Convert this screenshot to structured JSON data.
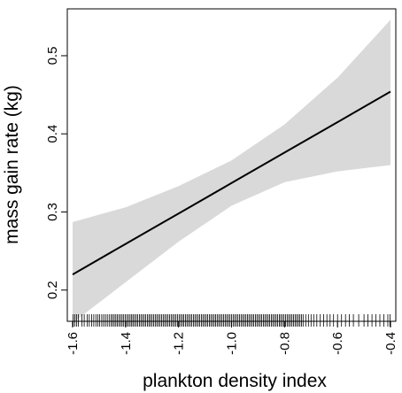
{
  "chart_data": {
    "type": "line",
    "title": "",
    "xlabel": "plankton density index",
    "ylabel": "mass gain rate (kg)",
    "xlim": [
      -1.62,
      -0.38
    ],
    "ylim": [
      0.16,
      0.56
    ],
    "x_ticks": [
      -1.6,
      -1.4,
      -1.2,
      -1.0,
      -0.8,
      -0.6,
      -0.4
    ],
    "x_tick_labels": [
      "-1.6",
      "-1.4",
      "-1.2",
      "-1.0",
      "-0.8",
      "-0.6",
      "-0.4"
    ],
    "y_ticks": [
      0.2,
      0.3,
      0.4,
      0.5
    ],
    "y_tick_labels": [
      "0.2",
      "0.3",
      "0.4",
      "0.5"
    ],
    "grid": false,
    "series": [
      {
        "x": [
          -1.6,
          -1.4,
          -1.2,
          -1.0,
          -0.8,
          -0.6,
          -0.4
        ],
        "y": [
          0.22,
          0.259,
          0.298,
          0.337,
          0.376,
          0.415,
          0.454
        ],
        "lower": [
          0.158,
          0.21,
          0.262,
          0.308,
          0.338,
          0.352,
          0.36
        ],
        "upper": [
          0.287,
          0.306,
          0.333,
          0.366,
          0.412,
          0.472,
          0.546
        ]
      }
    ],
    "rug_x": [
      -1.598,
      -1.592,
      -1.585,
      -1.578,
      -1.565,
      -1.556,
      -1.545,
      -1.537,
      -1.528,
      -1.52,
      -1.512,
      -1.505,
      -1.498,
      -1.49,
      -1.483,
      -1.476,
      -1.469,
      -1.462,
      -1.455,
      -1.449,
      -1.443,
      -1.437,
      -1.431,
      -1.425,
      -1.419,
      -1.413,
      -1.407,
      -1.401,
      -1.395,
      -1.389,
      -1.383,
      -1.377,
      -1.372,
      -1.366,
      -1.36,
      -1.354,
      -1.348,
      -1.342,
      -1.336,
      -1.33,
      -1.324,
      -1.318,
      -1.312,
      -1.306,
      -1.3,
      -1.294,
      -1.288,
      -1.282,
      -1.276,
      -1.27,
      -1.264,
      -1.258,
      -1.252,
      -1.246,
      -1.24,
      -1.234,
      -1.228,
      -1.222,
      -1.216,
      -1.21,
      -1.204,
      -1.198,
      -1.192,
      -1.186,
      -1.18,
      -1.174,
      -1.168,
      -1.162,
      -1.156,
      -1.15,
      -1.144,
      -1.138,
      -1.132,
      -1.126,
      -1.12,
      -1.114,
      -1.108,
      -1.102,
      -1.096,
      -1.09,
      -1.084,
      -1.078,
      -1.072,
      -1.066,
      -1.06,
      -1.054,
      -1.048,
      -1.042,
      -1.036,
      -1.03,
      -1.024,
      -1.018,
      -1.012,
      -1.006,
      -1.0,
      -0.994,
      -0.988,
      -0.982,
      -0.976,
      -0.97,
      -0.964,
      -0.958,
      -0.952,
      -0.946,
      -0.94,
      -0.934,
      -0.928,
      -0.922,
      -0.916,
      -0.91,
      -0.904,
      -0.898,
      -0.892,
      -0.886,
      -0.88,
      -0.874,
      -0.868,
      -0.862,
      -0.856,
      -0.85,
      -0.844,
      -0.838,
      -0.832,
      -0.826,
      -0.82,
      -0.814,
      -0.808,
      -0.802,
      -0.796,
      -0.79,
      -0.784,
      -0.778,
      -0.772,
      -0.766,
      -0.76,
      -0.754,
      -0.748,
      -0.742,
      -0.736,
      -0.73,
      -0.72,
      -0.71,
      -0.7,
      -0.69,
      -0.678,
      -0.665,
      -0.652,
      -0.64,
      -0.628,
      -0.615,
      -0.6,
      -0.585,
      -0.57,
      -0.555,
      -0.54,
      -0.52,
      -0.5,
      -0.485,
      -0.47,
      -0.455,
      -0.44,
      -0.425,
      -0.41,
      -0.402
    ]
  }
}
